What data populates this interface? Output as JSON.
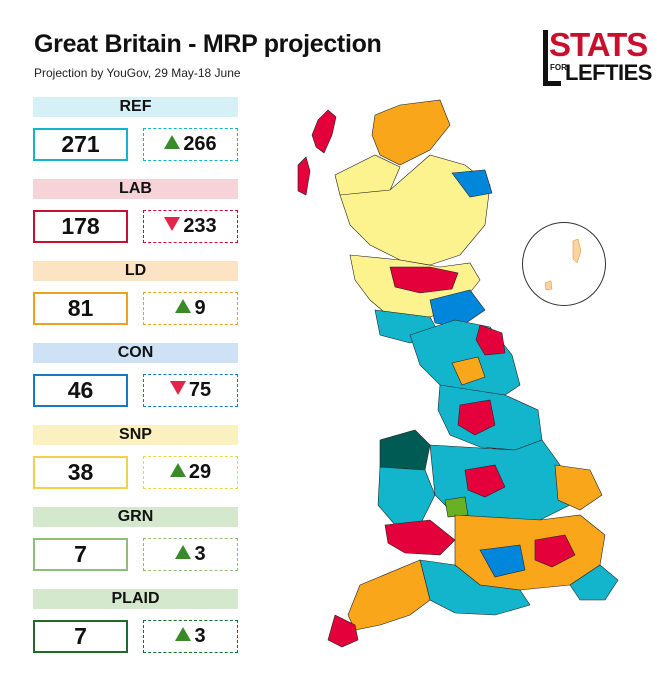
{
  "title": "Great Britain - MRP projection",
  "subtitle": "Projection by YouGov, 29 May-18 June",
  "logo": {
    "top": "STATS",
    "small": "FOR",
    "bottom": "LEFTIES"
  },
  "colors": {
    "ref": "#12b5cb",
    "lab": "#e4003b",
    "ld": "#faa61a",
    "con": "#0087dc",
    "snp": "#fdf38e",
    "grn": "#6ab023",
    "plaid": "#005b54"
  },
  "parties": [
    {
      "name": "REF",
      "seats": "271",
      "change": "266",
      "direction": "up",
      "band": "#d6f0f7",
      "border": "#12b5cb"
    },
    {
      "name": "LAB",
      "seats": "178",
      "change": "233",
      "direction": "down",
      "band": "#f6d3d9",
      "border": "#c8102e"
    },
    {
      "name": "LD",
      "seats": "81",
      "change": "9",
      "direction": "up",
      "band": "#fbe3c4",
      "border": "#f0a020"
    },
    {
      "name": "CON",
      "seats": "46",
      "change": "75",
      "direction": "down",
      "band": "#cfe2f5",
      "border": "#1a78c2"
    },
    {
      "name": "SNP",
      "seats": "38",
      "change": "29",
      "direction": "up",
      "band": "#fbf0c0",
      "border": "#f2d24a"
    },
    {
      "name": "GRN",
      "seats": "7",
      "change": "3",
      "direction": "up",
      "band": "#d3e8cc",
      "border": "#8cc07a"
    },
    {
      "name": "PLAID",
      "seats": "7",
      "change": "3",
      "direction": "up",
      "band": "#d3e8cc",
      "border": "#1e6b2a"
    }
  ]
}
